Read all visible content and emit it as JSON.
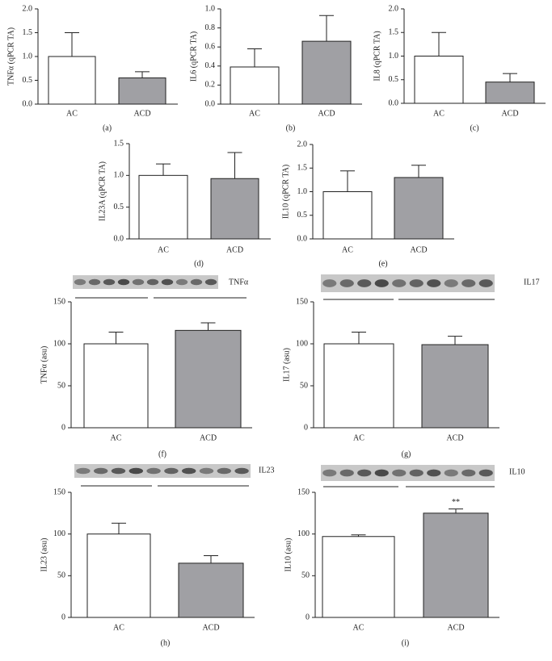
{
  "chart_data": [
    {
      "type": "bar",
      "ylabel": "TNFα (qPCR TA)",
      "panel_label": "(a)",
      "categories": [
        "AC",
        "ACD"
      ],
      "values": [
        1.0,
        0.55
      ],
      "errors": [
        0.5,
        0.13
      ],
      "colors": [
        "#ffffff",
        "#a0a0a4"
      ],
      "ylim": [
        0,
        2
      ],
      "yticks": [
        {
          "value": 0,
          "label": "0.0"
        },
        0.5,
        {
          "value": 1,
          "label": "1.0"
        },
        1.5,
        {
          "value": 2,
          "label": "2.0"
        }
      ]
    },
    {
      "type": "bar",
      "ylabel": "IL6 (qPCR TA)",
      "panel_label": "(b)",
      "categories": [
        "AC",
        "ACD"
      ],
      "values": [
        0.39,
        0.66
      ],
      "errors": [
        0.19,
        0.27
      ],
      "colors": [
        "#ffffff",
        "#a0a0a4"
      ],
      "ylim": [
        0,
        1
      ],
      "yticks": [
        {
          "value": 0,
          "label": "0.0"
        },
        0.2,
        0.4,
        0.6,
        0.8,
        {
          "value": 1,
          "label": "1.0"
        }
      ]
    },
    {
      "type": "bar",
      "ylabel": "IL8 (qPCR TA)",
      "panel_label": "(c)",
      "categories": [
        "AC",
        "ACD"
      ],
      "values": [
        1.0,
        0.45
      ],
      "errors": [
        0.5,
        0.18
      ],
      "colors": [
        "#ffffff",
        "#a0a0a4"
      ],
      "ylim": [
        0,
        2
      ],
      "yticks": [
        {
          "value": 0,
          "label": "0.0"
        },
        0.5,
        {
          "value": 1,
          "label": "1.0"
        },
        1.5,
        {
          "value": 2,
          "label": "2.0"
        }
      ]
    },
    {
      "type": "bar",
      "ylabel": "IL23A (qPCR TA)",
      "panel_label": "(d)",
      "categories": [
        "AC",
        "ACD"
      ],
      "values": [
        1.0,
        0.95
      ],
      "errors": [
        0.18,
        0.41
      ],
      "colors": [
        "#ffffff",
        "#a0a0a4"
      ],
      "ylim": [
        0,
        1.5
      ],
      "yticks": [
        {
          "value": 0,
          "label": "0.0"
        },
        0.5,
        {
          "value": 1,
          "label": "1.0"
        },
        1.5
      ]
    },
    {
      "type": "bar",
      "ylabel": "IL10 (qPCR TA)",
      "panel_label": "(e)",
      "categories": [
        "AC",
        "ACD"
      ],
      "values": [
        1.0,
        1.3
      ],
      "errors": [
        0.44,
        0.26
      ],
      "colors": [
        "#ffffff",
        "#a0a0a4"
      ],
      "ylim": [
        0,
        2
      ],
      "yticks": [
        {
          "value": 0,
          "label": "0.0"
        },
        0.5,
        {
          "value": 1,
          "label": "1.0"
        },
        1.5,
        {
          "value": 2,
          "label": "2.0"
        }
      ]
    },
    {
      "type": "bar",
      "ylabel": "TNFα (asu)",
      "panel_label": "(f)",
      "blot_label": "TNFα",
      "categories": [
        "AC",
        "ACD"
      ],
      "values": [
        100,
        116
      ],
      "errors": [
        14,
        9
      ],
      "colors": [
        "#ffffff",
        "#a0a0a4"
      ],
      "ylim": [
        0,
        150
      ],
      "yticks": [
        0,
        50,
        100,
        150
      ]
    },
    {
      "type": "bar",
      "ylabel": "IL17 (asu)",
      "panel_label": "(g)",
      "blot_label": "IL17",
      "categories": [
        "AC",
        "ACD"
      ],
      "values": [
        100,
        99
      ],
      "errors": [
        14,
        10
      ],
      "colors": [
        "#ffffff",
        "#a0a0a4"
      ],
      "ylim": [
        0,
        150
      ],
      "yticks": [
        0,
        50,
        100,
        150
      ]
    },
    {
      "type": "bar",
      "ylabel": "IL23 (asu)",
      "panel_label": "(h)",
      "blot_label": "IL23",
      "categories": [
        "AC",
        "ACD"
      ],
      "values": [
        100,
        65
      ],
      "errors": [
        13,
        9
      ],
      "colors": [
        "#ffffff",
        "#a0a0a4"
      ],
      "ylim": [
        0,
        150
      ],
      "yticks": [
        0,
        50,
        100,
        150
      ]
    },
    {
      "type": "bar",
      "ylabel": "IL10 (asu)",
      "panel_label": "(i)",
      "blot_label": "IL10",
      "categories": [
        "AC",
        "ACD"
      ],
      "values": [
        97,
        125
      ],
      "errors": [
        2,
        5
      ],
      "colors": [
        "#ffffff",
        "#a0a0a4"
      ],
      "ylim": [
        0,
        150
      ],
      "yticks": [
        0,
        50,
        100,
        150
      ],
      "annotations": [
        {
          "category": "ACD",
          "text": "**"
        }
      ]
    }
  ]
}
